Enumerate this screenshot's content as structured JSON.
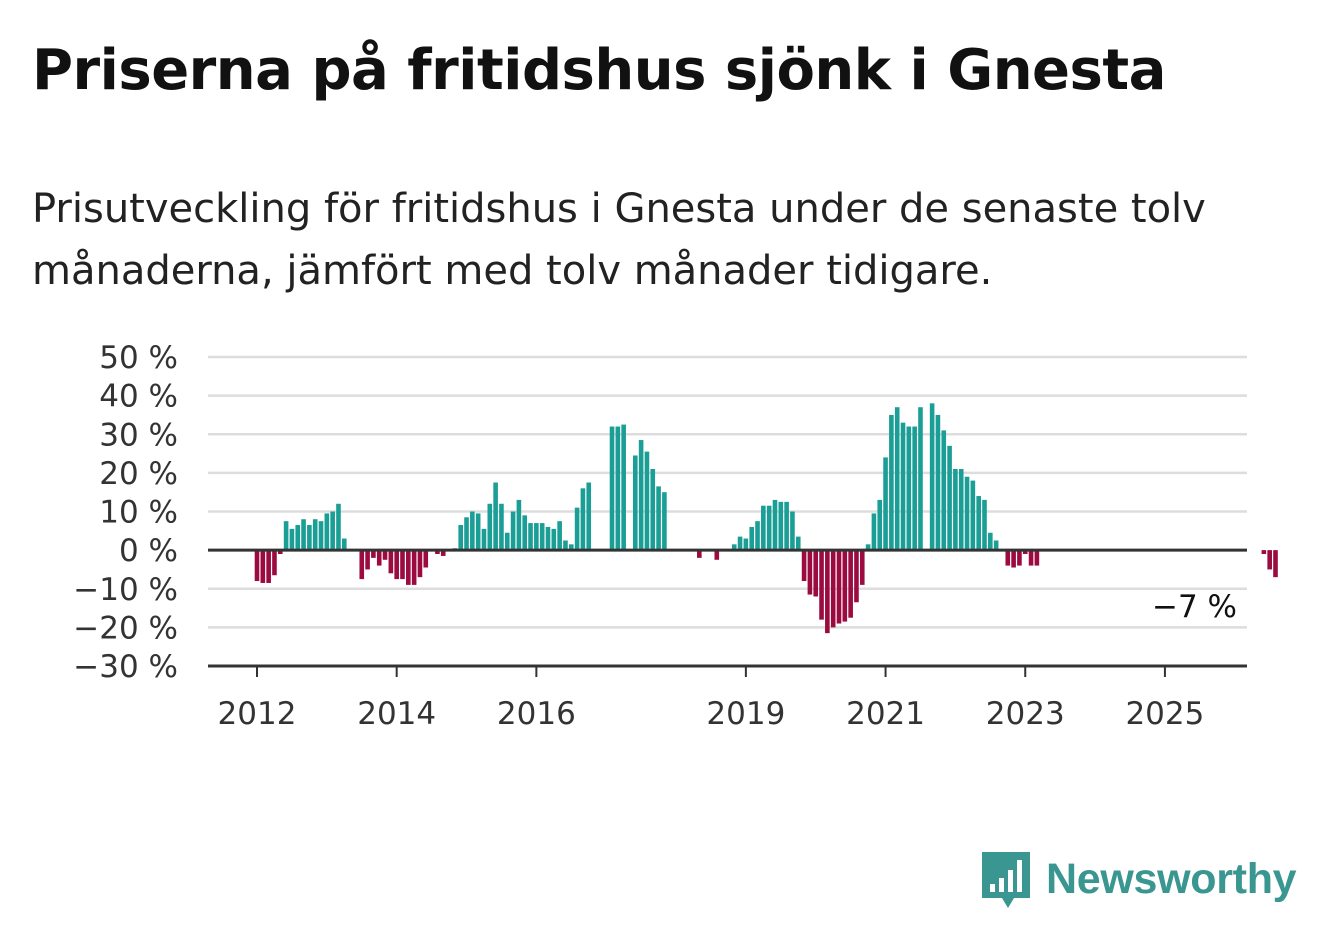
{
  "title": "Priserna på fritidshus sjönk i Gnesta",
  "subtitle": "Prisutveckling för fritidshus i Gnesta under de senaste tolv månaderna, jämfört med tolv månader tidigare.",
  "logo": {
    "name": "Newsworthy",
    "icon": "newsworthy-chart-bubble-icon",
    "color": "#3a9690"
  },
  "chart_data": {
    "type": "bar",
    "title": "",
    "xlabel": "",
    "ylabel": "",
    "ylim": [
      -30,
      50
    ],
    "yticks": [
      50,
      40,
      30,
      20,
      10,
      0,
      -10,
      -20,
      -30
    ],
    "ytick_labels": [
      "50 %",
      "40 %",
      "30 %",
      "20 %",
      "10 %",
      "0 %",
      "−10 %",
      "−20 %",
      "−30 %"
    ],
    "xtick_labels": [
      "2012",
      "2014",
      "2016",
      "2019",
      "2021",
      "2023",
      "2025"
    ],
    "xtick_dates": [
      "2012-01",
      "2014-01",
      "2016-01",
      "2019-01",
      "2021-01",
      "2023-01",
      "2025-01"
    ],
    "start_month": "2012-01",
    "colors": {
      "positive": "#1a9e96",
      "negative": "#9b0b40"
    },
    "grid": true,
    "annotation": {
      "text": "−7 %",
      "month": "2025-04"
    },
    "values": [
      -8,
      -8.5,
      -8.5,
      -6.5,
      -1,
      7.5,
      5.5,
      6.5,
      8,
      6.5,
      8,
      7.5,
      9.5,
      10,
      12,
      3,
      null,
      null,
      -7.5,
      -5,
      -2,
      -4,
      -2.5,
      -6,
      -7.5,
      -7.5,
      -9,
      -9,
      -7,
      -4.5,
      null,
      -1,
      -1.5,
      null,
      0.5,
      6.5,
      8.5,
      10,
      9.5,
      5.5,
      12,
      17.5,
      12,
      4.5,
      10,
      13,
      9,
      7,
      7,
      7,
      6,
      5.5,
      7.5,
      2.5,
      1.5,
      11,
      16,
      17.5,
      null,
      null,
      null,
      32,
      32,
      32.5,
      null,
      24.5,
      28.5,
      25.5,
      21,
      16.5,
      15,
      null,
      null,
      null,
      null,
      null,
      -2,
      null,
      null,
      -2.5,
      null,
      null,
      1.5,
      3.5,
      3,
      6,
      7.5,
      11.5,
      11.5,
      13,
      12.5,
      12.5,
      10,
      3.5,
      -8,
      -11.5,
      -12,
      -18,
      -21.5,
      -20,
      -19,
      -18.5,
      -17.5,
      -13.5,
      -9,
      1.5,
      9.5,
      13,
      24,
      35,
      37,
      33,
      32,
      32,
      37,
      null,
      38,
      35,
      31,
      27,
      21,
      21,
      19,
      18,
      14,
      13,
      4.5,
      2.5,
      null,
      -4,
      -4.5,
      -4,
      -1,
      -4,
      -4,
      null,
      null,
      null,
      null,
      null,
      null,
      null,
      null,
      null,
      null,
      null,
      null,
      null,
      null,
      null,
      null,
      null,
      null,
      null,
      null,
      null,
      null,
      null,
      null,
      null,
      null,
      null,
      null,
      null,
      null,
      null,
      null,
      null,
      null,
      null,
      null,
      null,
      null,
      -1,
      -5,
      -7
    ]
  }
}
